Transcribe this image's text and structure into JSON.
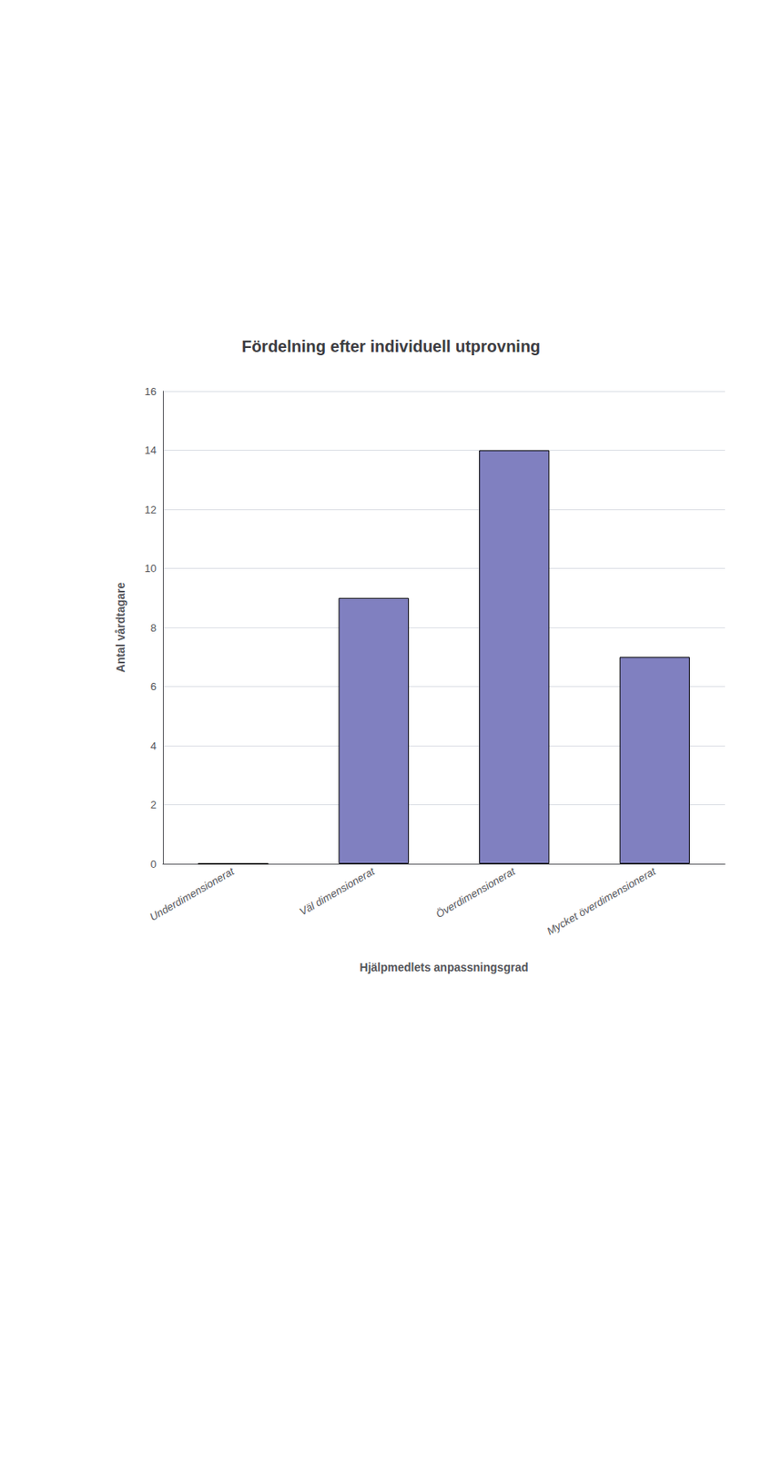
{
  "chart_data": {
    "type": "bar",
    "title": "Fördelning efter individuell utprovning",
    "categories": [
      "Underdimensionerat",
      "Väl dimensionerat",
      "Överdimensionerat",
      "Mycket överdimensionerat"
    ],
    "values": [
      0,
      9,
      14,
      7
    ],
    "color": "#8080c0",
    "xlabel": "Hjälpmedlets anpassningsgrad",
    "ylabel": "Antal vårdtagare",
    "ylim": [
      0,
      16
    ],
    "yticks": [
      0,
      2,
      4,
      6,
      8,
      10,
      12,
      14,
      16
    ],
    "grid": true
  }
}
